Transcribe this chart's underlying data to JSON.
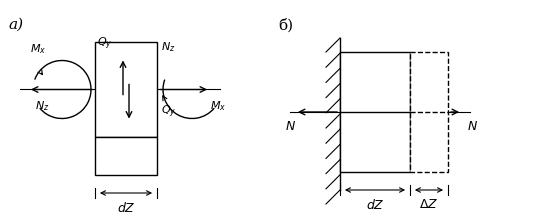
{
  "fig_width": 5.52,
  "fig_height": 2.22,
  "dpi": 100,
  "background": "#ffffff",
  "alpha_label": "а)",
  "beta_label": "б)"
}
